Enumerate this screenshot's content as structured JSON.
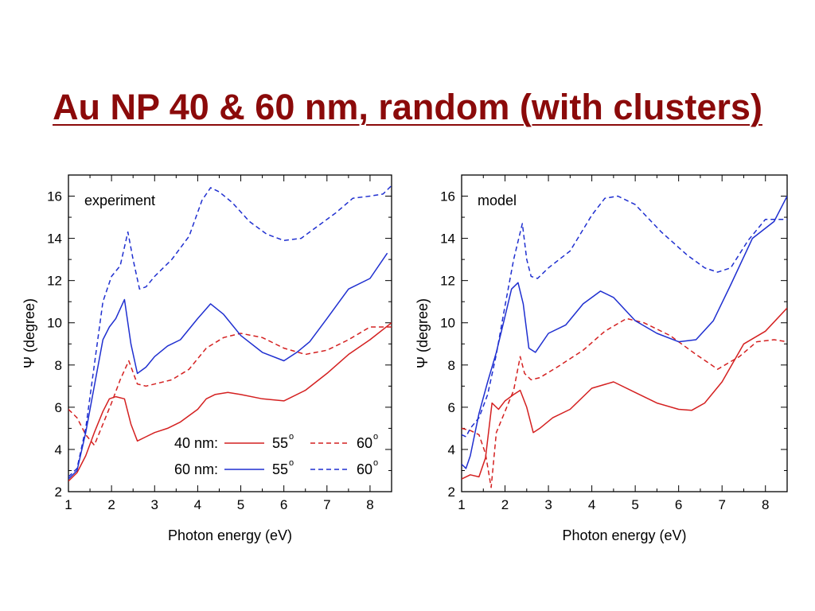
{
  "title": "Au NP 40 & 60 nm, random (with clusters)",
  "colors": {
    "title": "#8b0a0a",
    "red": "#d42020",
    "blue": "#1f2fd0"
  },
  "chart_data": [
    {
      "type": "line",
      "panel_label": "experiment",
      "xlabel": "Photon energy (eV)",
      "ylabel": "Ψ (degree)",
      "xlim": [
        1,
        8.5
      ],
      "ylim": [
        2,
        17
      ],
      "xticks": [
        "1",
        "2",
        "3",
        "4",
        "5",
        "6",
        "7",
        "8"
      ],
      "yticks": [
        "2",
        "4",
        "6",
        "8",
        "10",
        "12",
        "14",
        "16"
      ],
      "legend": {
        "row1_label": "40 nm:",
        "row2_label": "60 nm:",
        "solid_label": "55°",
        "dashed_label": "60°",
        "solid_text": "55",
        "dashed_text": "60",
        "degree": "o"
      },
      "series": [
        {
          "name": "40 nm 55°",
          "color": "red",
          "dash": false,
          "x": [
            1,
            1.2,
            1.4,
            1.6,
            1.8,
            1.95,
            2.1,
            2.3,
            2.45,
            2.6,
            2.8,
            3,
            3.3,
            3.6,
            4,
            4.2,
            4.4,
            4.7,
            5,
            5.5,
            6,
            6.5,
            7,
            7.5,
            8,
            8.5
          ],
          "y": [
            2.5,
            2.9,
            3.7,
            4.8,
            5.8,
            6.4,
            6.5,
            6.4,
            5.2,
            4.4,
            4.6,
            4.8,
            5.0,
            5.3,
            5.9,
            6.4,
            6.6,
            6.7,
            6.6,
            6.4,
            6.3,
            6.8,
            7.6,
            8.5,
            9.2,
            10.0
          ]
        },
        {
          "name": "40 nm 60°",
          "color": "red",
          "dash": true,
          "x": [
            1,
            1.2,
            1.4,
            1.6,
            1.8,
            2,
            2.2,
            2.4,
            2.6,
            2.8,
            3,
            3.4,
            3.8,
            4.2,
            4.6,
            5,
            5.5,
            6,
            6.5,
            7,
            7.5,
            8,
            8.5
          ],
          "y": [
            5.9,
            5.5,
            4.7,
            4.2,
            5.2,
            6.2,
            7.3,
            8.2,
            7.1,
            7.0,
            7.1,
            7.3,
            7.8,
            8.8,
            9.3,
            9.5,
            9.3,
            8.8,
            8.5,
            8.7,
            9.2,
            9.8,
            9.8
          ]
        },
        {
          "name": "60 nm 55°",
          "color": "blue",
          "dash": false,
          "x": [
            1,
            1.2,
            1.4,
            1.6,
            1.8,
            1.95,
            2.1,
            2.3,
            2.45,
            2.6,
            2.8,
            3,
            3.3,
            3.6,
            4,
            4.3,
            4.6,
            5,
            5.5,
            6,
            6.3,
            6.6,
            7,
            7.5,
            8,
            8.4
          ],
          "y": [
            2.6,
            3.0,
            4.8,
            7.0,
            9.2,
            9.8,
            10.2,
            11.1,
            9.0,
            7.6,
            7.9,
            8.4,
            8.9,
            9.2,
            10.2,
            10.9,
            10.4,
            9.4,
            8.6,
            8.2,
            8.6,
            9.1,
            10.2,
            11.6,
            12.1,
            13.3
          ]
        },
        {
          "name": "60 nm 60°",
          "color": "blue",
          "dash": true,
          "x": [
            1,
            1.2,
            1.4,
            1.6,
            1.8,
            2,
            2.2,
            2.38,
            2.5,
            2.65,
            2.8,
            3,
            3.4,
            3.8,
            4.1,
            4.3,
            4.5,
            4.8,
            5.2,
            5.6,
            6,
            6.4,
            6.8,
            7.2,
            7.6,
            8,
            8.3,
            8.5
          ],
          "y": [
            2.7,
            3.1,
            5.0,
            8.0,
            11.0,
            12.2,
            12.7,
            14.3,
            13.0,
            11.6,
            11.7,
            12.2,
            13.0,
            14.1,
            15.8,
            16.4,
            16.2,
            15.7,
            14.8,
            14.2,
            13.9,
            14.0,
            14.6,
            15.2,
            15.9,
            16.0,
            16.1,
            16.5
          ]
        }
      ]
    },
    {
      "type": "line",
      "panel_label": "model",
      "xlabel": "Photon energy (eV)",
      "ylabel": "Ψ (degree)",
      "xlim": [
        1,
        8.5
      ],
      "ylim": [
        2,
        17
      ],
      "xticks": [
        "1",
        "2",
        "3",
        "4",
        "5",
        "6",
        "7",
        "8"
      ],
      "yticks": [
        "2",
        "4",
        "6",
        "8",
        "10",
        "12",
        "14",
        "16"
      ],
      "series": [
        {
          "name": "40 nm 55°",
          "color": "red",
          "dash": false,
          "x": [
            1,
            1.2,
            1.4,
            1.55,
            1.7,
            1.85,
            2,
            2.2,
            2.35,
            2.5,
            2.65,
            2.8,
            3.1,
            3.5,
            4,
            4.5,
            5,
            5.5,
            6,
            6.3,
            6.6,
            7,
            7.5,
            8,
            8.5
          ],
          "y": [
            2.6,
            2.8,
            2.7,
            3.6,
            6.2,
            5.9,
            6.3,
            6.6,
            6.8,
            6.0,
            4.8,
            5.0,
            5.5,
            5.9,
            6.9,
            7.2,
            6.7,
            6.2,
            5.9,
            5.85,
            6.2,
            7.2,
            9.0,
            9.6,
            10.7
          ]
        },
        {
          "name": "40 nm 60°",
          "color": "red",
          "dash": true,
          "x": [
            1,
            1.2,
            1.4,
            1.55,
            1.68,
            1.8,
            2,
            2.2,
            2.35,
            2.45,
            2.6,
            2.8,
            3.2,
            3.8,
            4.3,
            4.8,
            5.2,
            5.8,
            6.4,
            6.9,
            7.4,
            7.8,
            8.2,
            8.5
          ],
          "y": [
            5.0,
            4.9,
            4.7,
            3.8,
            2.2,
            4.8,
            5.8,
            6.8,
            8.4,
            7.6,
            7.3,
            7.4,
            7.9,
            8.7,
            9.6,
            10.2,
            10.0,
            9.4,
            8.5,
            7.8,
            8.4,
            9.1,
            9.2,
            9.1
          ]
        },
        {
          "name": "60 nm 55°",
          "color": "blue",
          "dash": false,
          "x": [
            1,
            1.1,
            1.2,
            1.4,
            1.6,
            1.8,
            2,
            2.15,
            2.3,
            2.42,
            2.55,
            2.7,
            3,
            3.4,
            3.8,
            4.2,
            4.5,
            5,
            5.5,
            6,
            6.4,
            6.8,
            7.2,
            7.7,
            8.2,
            8.5
          ],
          "y": [
            3.3,
            3.1,
            3.7,
            5.7,
            7.2,
            8.6,
            10.3,
            11.6,
            11.9,
            10.9,
            8.8,
            8.6,
            9.5,
            9.9,
            10.9,
            11.5,
            11.2,
            10.1,
            9.5,
            9.1,
            9.2,
            10.1,
            11.8,
            14.0,
            14.8,
            16.0
          ]
        },
        {
          "name": "60 nm 60°",
          "color": "blue",
          "dash": true,
          "x": [
            1,
            1.1,
            1.2,
            1.4,
            1.6,
            1.8,
            2,
            2.2,
            2.4,
            2.5,
            2.6,
            2.75,
            3,
            3.5,
            4,
            4.3,
            4.6,
            5,
            5.6,
            6.2,
            6.6,
            6.9,
            7.2,
            7.6,
            8,
            8.5
          ],
          "y": [
            4.7,
            4.6,
            5.0,
            5.5,
            6.6,
            8.5,
            10.8,
            13.0,
            14.7,
            13.0,
            12.2,
            12.1,
            12.6,
            13.4,
            15.1,
            15.9,
            16.0,
            15.6,
            14.3,
            13.2,
            12.6,
            12.4,
            12.6,
            13.9,
            14.9,
            14.9
          ]
        }
      ]
    }
  ]
}
